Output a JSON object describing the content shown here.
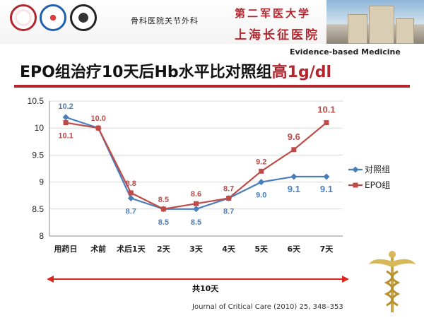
{
  "header": {
    "department": "骨科医院关节外科",
    "hospital_line1": "第二军医大学",
    "hospital_line2": "上海长征医院"
  },
  "tag": "Evidence-based Medicine",
  "title": {
    "prefix": "EPO组治疗10天后Hb水平比对照组",
    "highlight": "高1g/dl"
  },
  "duration_label": "共10天",
  "citation": "Journal of Critical Care (2010) 25, 348–353",
  "colors": {
    "control": "#4a7ebb",
    "epo": "#be4b48",
    "accent": "#b3262e",
    "arrow": "#d9261c"
  },
  "chart_data": {
    "type": "line",
    "categories": [
      "用药日",
      "术前",
      "术后1天",
      "2天",
      "3天",
      "4天",
      "5天",
      "6天",
      "7天"
    ],
    "ylim": [
      8,
      10.5
    ],
    "yticks": [
      8,
      8.5,
      9,
      9.5,
      10,
      10.5
    ],
    "ytick_labels": [
      "8",
      "8.5",
      "9",
      "9.5",
      "10",
      "10.5"
    ],
    "grid": true,
    "legend": "right",
    "series": [
      {
        "name": "对照组",
        "color": "#4a7ebb",
        "marker": "diamond",
        "values": [
          10.2,
          10.0,
          8.7,
          8.5,
          8.5,
          8.7,
          9.0,
          9.1,
          9.1
        ],
        "labels": [
          "10.2",
          "",
          "8.7",
          "8.5",
          "8.5",
          "8.7",
          "9.0",
          "9.1",
          "9.1"
        ]
      },
      {
        "name": "EPO组",
        "color": "#be4b48",
        "marker": "square",
        "values": [
          10.1,
          10.0,
          8.8,
          8.5,
          8.6,
          8.7,
          9.2,
          9.6,
          10.1
        ],
        "labels": [
          "10.1",
          "10.0",
          "8.8",
          "8.5",
          "8.6",
          "8.7",
          "9.2",
          "9.6",
          "10.1"
        ]
      }
    ]
  }
}
